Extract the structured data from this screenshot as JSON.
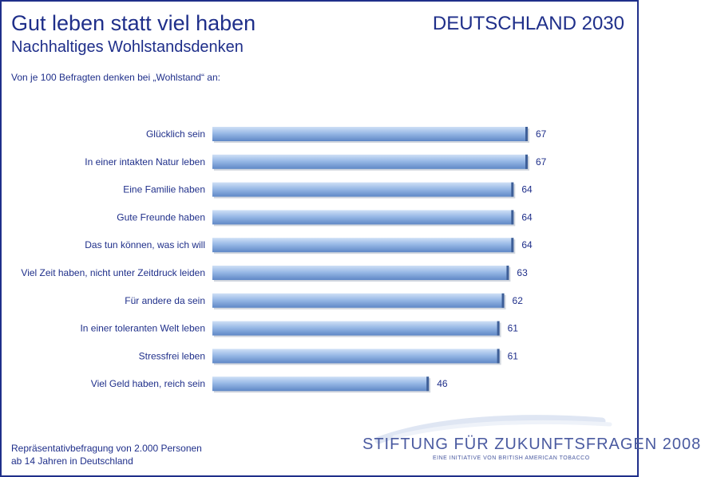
{
  "header": {
    "title": "Gut leben statt viel haben",
    "subtitle": "Nachhaltiges Wohlstandsdenken",
    "brand": "DEUTSCHLAND 2030",
    "intro": "Von je 100 Befragten denken bei „Wohlstand“ an:"
  },
  "chart_data": {
    "type": "bar",
    "orientation": "horizontal",
    "categories": [
      "Glücklich sein",
      "In einer intakten Natur leben",
      "Eine Familie haben",
      "Gute Freunde haben",
      "Das tun können, was ich will",
      "Viel Zeit haben, nicht unter Zeitdruck leiden",
      "Für andere da sein",
      "In einer toleranten Welt leben",
      "Stressfrei leben",
      "Viel Geld haben, reich sein"
    ],
    "values": [
      67,
      67,
      64,
      64,
      64,
      63,
      62,
      61,
      61,
      46
    ],
    "xlim": [
      0,
      67
    ],
    "grid": false,
    "data_labels": true,
    "bar_color": "#8fb2e3"
  },
  "footnote": {
    "line1": "Repräsentativbefragung von 2.000 Personen",
    "line2": "ab 14 Jahren in Deutschland"
  },
  "logo": {
    "name": "STIFTUNG FÜR ZUKUNFTSFRAGEN 2008",
    "tagline": "EINE INITIATIVE VON BRITISH AMERICAN TOBACCO"
  },
  "colors": {
    "text": "#1f2f8a",
    "bar_light": "#cfe0f6",
    "bar_dark": "#5f88c6"
  }
}
